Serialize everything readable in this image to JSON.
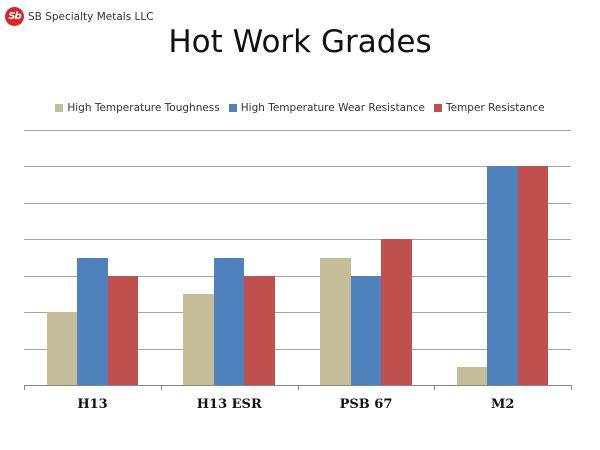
{
  "header": {
    "logo_mark": "Sb",
    "company": "SB Specialty Metals LLC",
    "title": "Hot Work Grades"
  },
  "chart_data": {
    "type": "bar",
    "title": "Hot Work Grades",
    "xlabel": "",
    "ylabel": "",
    "ylim": [
      0,
      7
    ],
    "grid": true,
    "y_tick_labels_shown": false,
    "legend_position": "top",
    "categories": [
      "H13",
      "H13 ESR",
      "PSB 67",
      "M2"
    ],
    "series": [
      {
        "name": "High Temperature Toughness",
        "color": "#c4bd97",
        "values": [
          2,
          2.5,
          3.5,
          0.5
        ]
      },
      {
        "name": "High Temperature Wear Resistance",
        "color": "#4f81bd",
        "values": [
          3.5,
          3.5,
          3,
          6
        ]
      },
      {
        "name": "Temper Resistance",
        "color": "#c0504d",
        "values": [
          3,
          3,
          4,
          6
        ]
      }
    ]
  }
}
